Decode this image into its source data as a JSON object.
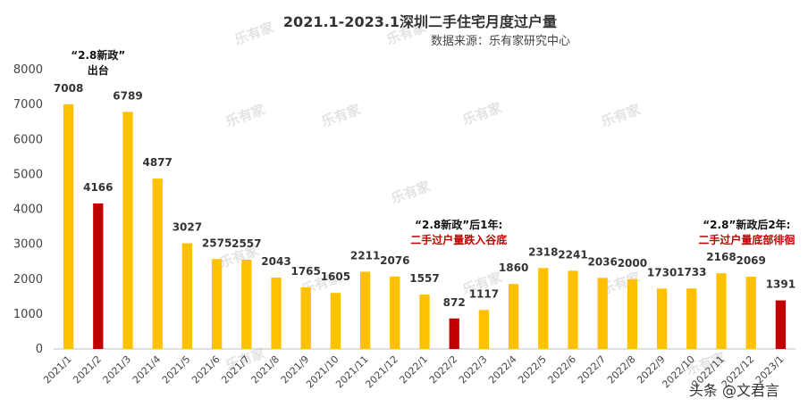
{
  "chart_data": {
    "type": "bar",
    "title": "2021.1-2023.1深圳二手住宅月度过户量",
    "subtitle": "数据来源：乐有家研究中心",
    "categories": [
      "2021/1",
      "2021/2",
      "2021/3",
      "2021/4",
      "2021/5",
      "2021/6",
      "2021/7",
      "2021/8",
      "2021/9",
      "2021/10",
      "2021/11",
      "2021/12",
      "2022/1",
      "2022/2",
      "2022/3",
      "2022/4",
      "2022/5",
      "2022/6",
      "2022/7",
      "2022/8",
      "2022/9",
      "2022/10",
      "2022/11",
      "2022/12",
      "2023/1"
    ],
    "values": [
      7008,
      4166,
      6789,
      4877,
      3027,
      2575,
      2557,
      2043,
      1765,
      1605,
      2211,
      2076,
      1557,
      872,
      1117,
      1860,
      2318,
      2241,
      2036,
      2000,
      1730,
      1733,
      2168,
      2069,
      1391
    ],
    "highlighted": [
      "2021/2",
      "2022/2",
      "2023/1"
    ],
    "ylim": [
      0,
      8000
    ],
    "yticks": [
      0,
      1000,
      2000,
      3000,
      4000,
      5000,
      6000,
      7000,
      8000
    ],
    "colors": {
      "normal": "#FFC000",
      "highlight": "#C00000"
    },
    "grid": false,
    "legend": "none",
    "annotations": [
      {
        "anchor": "2021/2",
        "lines": [
          {
            "text": "“2.8新政”",
            "color": "black"
          },
          {
            "text": "出台",
            "color": "black"
          }
        ]
      },
      {
        "anchor": "2022/2",
        "lines": [
          {
            "text": "“2.8新政”后1年:",
            "color": "black"
          },
          {
            "text": "二手过户量跌入谷底",
            "color": "red"
          }
        ]
      },
      {
        "anchor": "2023/1",
        "lines": [
          {
            "text": "“2.8”新政后2年:",
            "color": "black"
          },
          {
            "text": "二手过户量底部徘徊",
            "color": "red"
          }
        ]
      }
    ]
  },
  "watermark": "乐有家",
  "footer": "头条 @文君言"
}
